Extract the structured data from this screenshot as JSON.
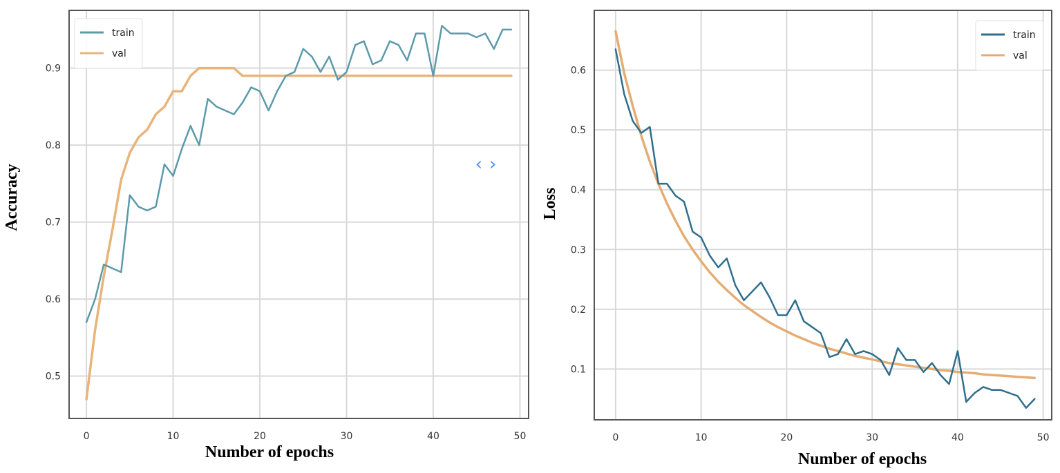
{
  "colors": {
    "train": "#5b9aaa",
    "train_right": "#2f6e8c",
    "val": "#e8b47a",
    "val_right": "#e5ad73"
  },
  "icons": {
    "nav": "code-arrows-icon",
    "nav_left": "‹",
    "nav_right": "›"
  },
  "chart_data": [
    {
      "type": "line",
      "title": "",
      "xlabel": "Number of epochs",
      "ylabel": "Accuracy",
      "xlim": [
        -2,
        51
      ],
      "ylim": [
        0.445,
        0.975
      ],
      "xticks": [
        0,
        10,
        20,
        30,
        40,
        50
      ],
      "yticks": [
        0.5,
        0.6,
        0.7,
        0.8,
        0.9
      ],
      "xtick_labels": [
        "0",
        "10",
        "20",
        "30",
        "40",
        "50"
      ],
      "ytick_labels": [
        "0.5",
        "0.6",
        "0.7",
        "0.8",
        "0.9"
      ],
      "grid": true,
      "legend_position": "top-left",
      "x": [
        0,
        1,
        2,
        3,
        4,
        5,
        6,
        7,
        8,
        9,
        10,
        11,
        12,
        13,
        14,
        15,
        16,
        17,
        18,
        19,
        20,
        21,
        22,
        23,
        24,
        25,
        26,
        27,
        28,
        29,
        30,
        31,
        32,
        33,
        34,
        35,
        36,
        37,
        38,
        39,
        40,
        41,
        42,
        43,
        44,
        45,
        46,
        47,
        48,
        49
      ],
      "series": [
        {
          "name": "train",
          "values": [
            0.57,
            0.6,
            0.645,
            0.64,
            0.635,
            0.735,
            0.72,
            0.715,
            0.72,
            0.775,
            0.76,
            0.795,
            0.825,
            0.8,
            0.86,
            0.85,
            0.845,
            0.84,
            0.855,
            0.875,
            0.87,
            0.845,
            0.87,
            0.89,
            0.895,
            0.925,
            0.915,
            0.895,
            0.915,
            0.885,
            0.895,
            0.93,
            0.935,
            0.905,
            0.91,
            0.935,
            0.93,
            0.91,
            0.945,
            0.945,
            0.89,
            0.955,
            0.945,
            0.945,
            0.945,
            0.94,
            0.945,
            0.925,
            0.95,
            0.95
          ]
        },
        {
          "name": "val",
          "values": [
            0.47,
            0.56,
            0.63,
            0.69,
            0.755,
            0.79,
            0.81,
            0.82,
            0.84,
            0.85,
            0.87,
            0.87,
            0.89,
            0.9,
            0.9,
            0.9,
            0.9,
            0.9,
            0.89,
            0.89,
            0.89,
            0.89,
            0.89,
            0.89,
            0.89,
            0.89,
            0.89,
            0.89,
            0.89,
            0.89,
            0.89,
            0.89,
            0.89,
            0.89,
            0.89,
            0.89,
            0.89,
            0.89,
            0.89,
            0.89,
            0.89,
            0.89,
            0.89,
            0.89,
            0.89,
            0.89,
            0.89,
            0.89,
            0.89,
            0.89
          ]
        }
      ]
    },
    {
      "type": "line",
      "title": "",
      "xlabel": "Number of epochs",
      "ylabel": "Loss",
      "xlim": [
        -2.5,
        51
      ],
      "ylim": [
        0.015,
        0.7
      ],
      "xticks": [
        0,
        10,
        20,
        30,
        40,
        50
      ],
      "yticks": [
        0.1,
        0.2,
        0.3,
        0.4,
        0.5,
        0.6
      ],
      "xtick_labels": [
        "0",
        "10",
        "20",
        "30",
        "40",
        "50"
      ],
      "ytick_labels": [
        "0.1",
        "0.2",
        "0.3",
        "0.4",
        "0.5",
        "0.6"
      ],
      "grid": true,
      "legend_position": "top-right",
      "x": [
        0,
        1,
        2,
        3,
        4,
        5,
        6,
        7,
        8,
        9,
        10,
        11,
        12,
        13,
        14,
        15,
        16,
        17,
        18,
        19,
        20,
        21,
        22,
        23,
        24,
        25,
        26,
        27,
        28,
        29,
        30,
        31,
        32,
        33,
        34,
        35,
        36,
        37,
        38,
        39,
        40,
        41,
        42,
        43,
        44,
        45,
        46,
        47,
        48,
        49
      ],
      "series": [
        {
          "name": "train",
          "values": [
            0.635,
            0.56,
            0.515,
            0.495,
            0.505,
            0.41,
            0.41,
            0.39,
            0.38,
            0.33,
            0.32,
            0.29,
            0.27,
            0.285,
            0.24,
            0.215,
            0.23,
            0.245,
            0.22,
            0.19,
            0.19,
            0.215,
            0.18,
            0.17,
            0.16,
            0.12,
            0.125,
            0.15,
            0.125,
            0.13,
            0.125,
            0.115,
            0.09,
            0.135,
            0.115,
            0.115,
            0.095,
            0.11,
            0.09,
            0.075,
            0.13,
            0.045,
            0.06,
            0.07,
            0.065,
            0.065,
            0.06,
            0.055,
            0.035,
            0.05
          ]
        },
        {
          "name": "val",
          "values": [
            0.665,
            0.595,
            0.54,
            0.49,
            0.447,
            0.41,
            0.377,
            0.348,
            0.322,
            0.3,
            0.28,
            0.262,
            0.246,
            0.232,
            0.219,
            0.207,
            0.197,
            0.187,
            0.178,
            0.17,
            0.163,
            0.156,
            0.15,
            0.144,
            0.139,
            0.134,
            0.13,
            0.126,
            0.122,
            0.119,
            0.116,
            0.113,
            0.11,
            0.108,
            0.106,
            0.104,
            0.102,
            0.1,
            0.098,
            0.097,
            0.095,
            0.094,
            0.093,
            0.091,
            0.09,
            0.089,
            0.088,
            0.087,
            0.086,
            0.085
          ]
        }
      ]
    }
  ]
}
